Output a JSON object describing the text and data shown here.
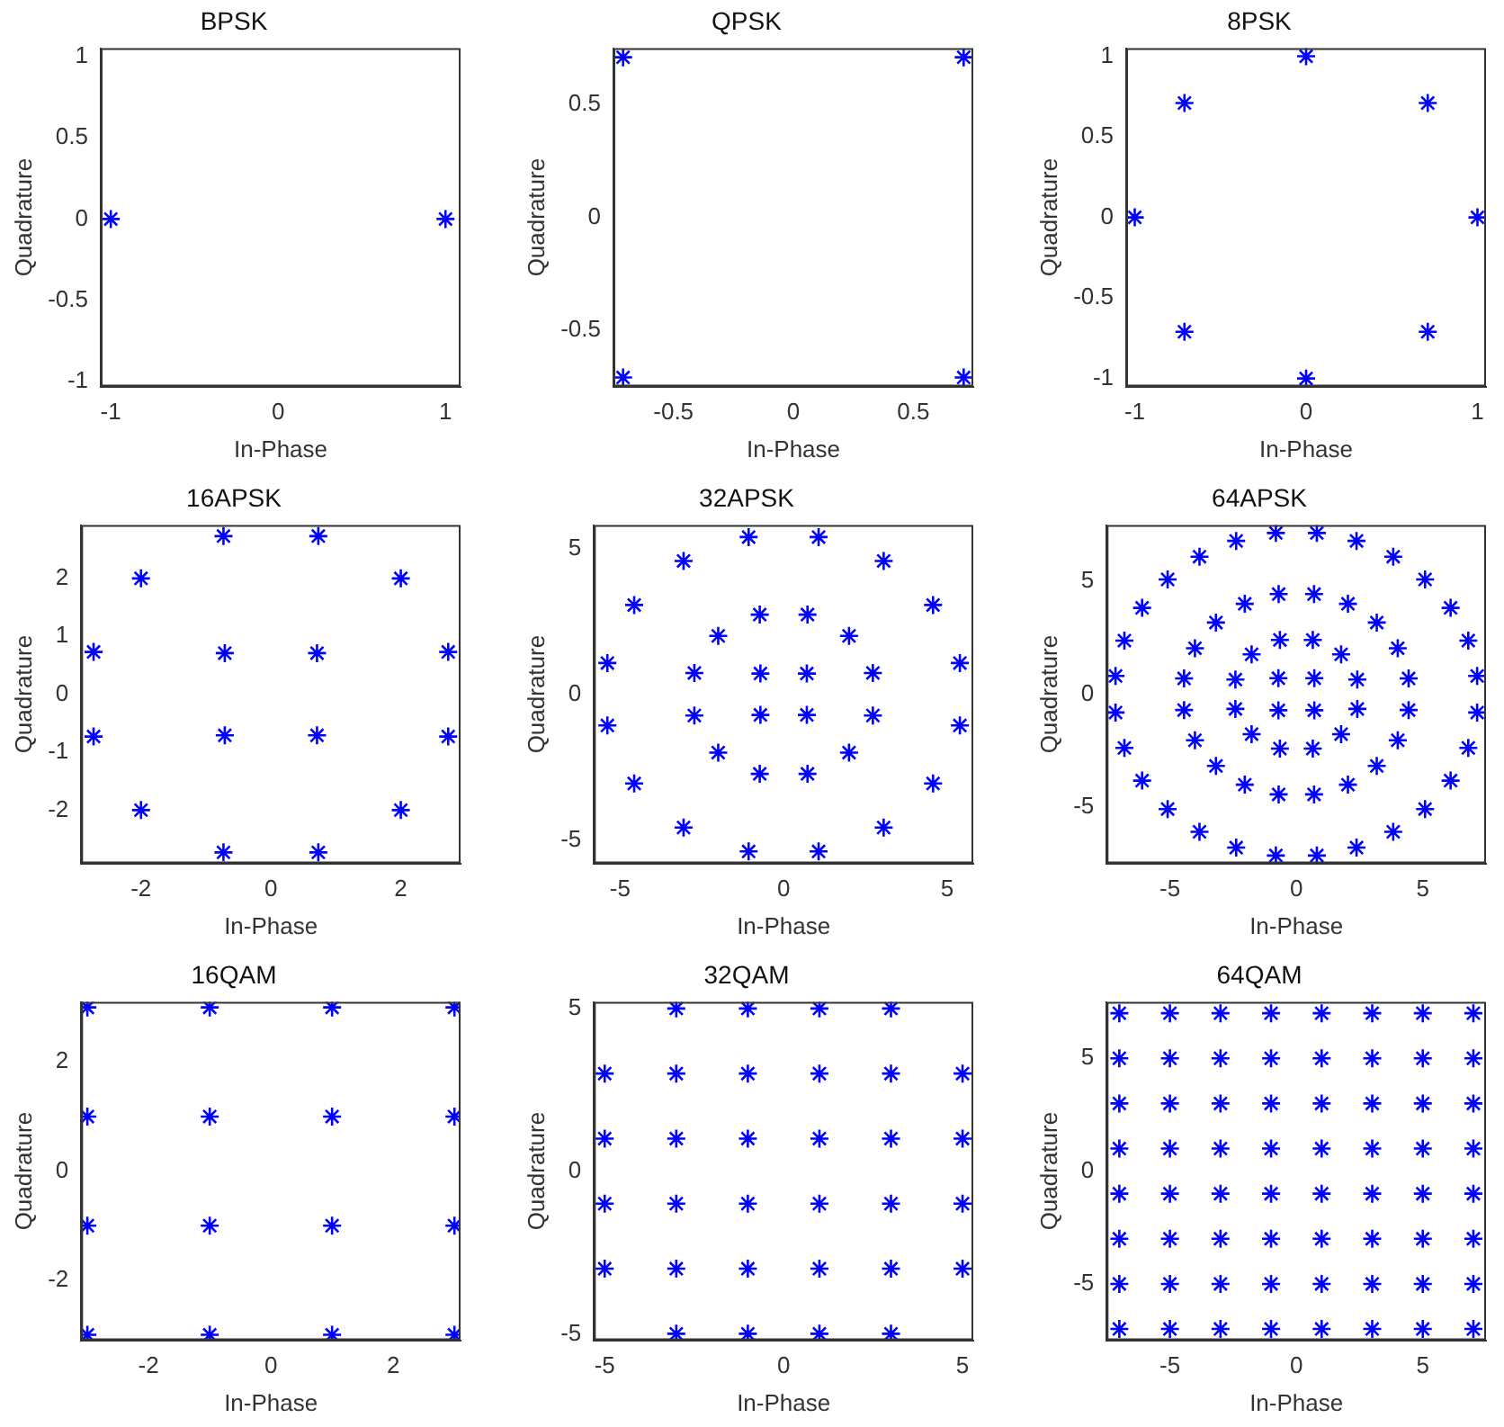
{
  "chart_data": [
    {
      "type": "scatter",
      "title": "BPSK",
      "xlabel": "In-Phase",
      "ylabel": "Quadrature",
      "color": "#0000ff",
      "marker": "cross",
      "x": [
        -1,
        1
      ],
      "values": [
        0,
        0
      ],
      "xlim": [
        -1.06,
        1.09
      ],
      "ylim": [
        -1.03,
        1.05
      ],
      "xticks": [
        -1,
        0,
        1
      ],
      "yticks": [
        -1,
        -0.5,
        0,
        0.5,
        1
      ]
    },
    {
      "type": "scatter",
      "title": "QPSK",
      "xlabel": "In-Phase",
      "ylabel": "Quadrature",
      "color": "#0000ff",
      "marker": "cross",
      "x": [
        0.71,
        -0.71,
        -0.71,
        0.71
      ],
      "values": [
        0.71,
        0.71,
        -0.71,
        -0.71
      ],
      "xlim": [
        -0.75,
        0.75
      ],
      "ylim": [
        -0.75,
        0.75
      ],
      "xticks": [
        -0.5,
        0,
        0.5
      ],
      "yticks": [
        -0.5,
        0,
        0.5
      ]
    },
    {
      "type": "scatter",
      "title": "8PSK",
      "xlabel": "In-Phase",
      "ylabel": "Quadrature",
      "color": "#0000ff",
      "marker": "cross",
      "x": [
        1,
        0.71,
        0,
        -0.71,
        -1,
        -0.71,
        0,
        0.71
      ],
      "values": [
        0,
        0.71,
        1,
        0.71,
        0,
        -0.71,
        -1,
        -0.71
      ],
      "xlim": [
        -1.05,
        1.05
      ],
      "ylim": [
        -1.05,
        1.05
      ],
      "xticks": [
        -1,
        0,
        1
      ],
      "yticks": [
        -1,
        -0.5,
        0,
        0.5,
        1
      ]
    },
    {
      "type": "scatter",
      "title": "16APSK",
      "xlabel": "In-Phase",
      "ylabel": "Quadrature",
      "color": "#0000ff",
      "marker": "cross",
      "x": [
        0.71,
        2.73,
        2,
        0.73,
        -0.71,
        -2.73,
        -2,
        -0.73,
        -0.71,
        -2.73,
        -2,
        -0.73,
        0.71,
        2.73,
        2,
        0.73
      ],
      "values": [
        0.71,
        0.73,
        2,
        2.73,
        0.71,
        0.73,
        2,
        2.73,
        -0.71,
        -0.73,
        -2,
        -2.73,
        -0.71,
        -0.73,
        -2,
        -2.73
      ],
      "xlim": [
        -2.92,
        2.92
      ],
      "ylim": [
        -2.92,
        2.92
      ],
      "xticks": [
        -2,
        0,
        2
      ],
      "yticks": [
        -2,
        -1,
        0,
        1,
        2
      ]
    },
    {
      "type": "scatter",
      "title": "32APSK",
      "xlabel": "In-Phase",
      "ylabel": "Quadrature",
      "color": "#0000ff",
      "marker": "cross",
      "x": [
        0.71,
        2.73,
        2,
        0.73,
        5.39,
        4.57,
        3.06,
        1.07,
        -0.71,
        -2.73,
        -2,
        -0.73,
        -5.39,
        -4.57,
        -3.06,
        -1.07,
        -0.71,
        -2.73,
        -2,
        -0.73,
        -5.39,
        -4.57,
        -3.06,
        -1.07,
        0.71,
        2.73,
        2,
        0.73,
        5.39,
        4.57,
        3.06,
        1.07
      ],
      "values": [
        0.71,
        0.73,
        2,
        2.73,
        1.07,
        3.06,
        4.57,
        5.39,
        0.71,
        0.73,
        2,
        2.73,
        1.07,
        3.06,
        4.57,
        5.39,
        -0.71,
        -0.73,
        -2,
        -2.73,
        -1.07,
        -3.06,
        -4.57,
        -5.39,
        -0.71,
        -0.73,
        -2,
        -2.73,
        -1.07,
        -3.06,
        -4.57,
        -5.39
      ],
      "xlim": [
        -5.8,
        5.8
      ],
      "ylim": [
        -5.8,
        5.8
      ],
      "xticks": [
        -5,
        0,
        5
      ],
      "yticks": [
        -5,
        0,
        5
      ]
    },
    {
      "type": "scatter",
      "title": "64APSK",
      "xlabel": "In-Phase",
      "ylabel": "Quadrature",
      "color": "#0000ff",
      "marker": "cross",
      "x": [
        0.71,
        2.41,
        1.77,
        0.65,
        4.44,
        4.01,
        3.18,
        2.04,
        0.7,
        7.15,
        6.8,
        6.1,
        5.09,
        3.83,
        2.38,
        0.81,
        -0.71,
        -2.41,
        -1.77,
        -0.65,
        -4.44,
        -4.01,
        -3.18,
        -2.04,
        -0.7,
        -7.15,
        -6.8,
        -6.1,
        -5.09,
        -3.83,
        -2.38,
        -0.81,
        -0.71,
        -2.41,
        -1.77,
        -0.65,
        -4.44,
        -4.01,
        -3.18,
        -2.04,
        -0.7,
        -7.15,
        -6.8,
        -6.1,
        -5.09,
        -3.83,
        -2.38,
        -0.81,
        0.71,
        2.41,
        1.77,
        0.65,
        4.44,
        4.01,
        3.18,
        2.04,
        0.7,
        7.15,
        6.8,
        6.1,
        5.09,
        3.83,
        2.38,
        0.81
      ],
      "values": [
        0.71,
        0.65,
        1.77,
        2.41,
        0.7,
        2.04,
        3.18,
        4.01,
        4.44,
        0.81,
        2.38,
        3.83,
        5.09,
        6.1,
        6.8,
        7.15,
        0.71,
        0.65,
        1.77,
        2.41,
        0.7,
        2.04,
        3.18,
        4.01,
        4.44,
        0.81,
        2.38,
        3.83,
        5.09,
        6.1,
        6.8,
        7.15,
        -0.71,
        -0.65,
        -1.77,
        -2.41,
        -0.7,
        -2.04,
        -3.18,
        -4.01,
        -4.44,
        -0.81,
        -2.38,
        -3.83,
        -5.09,
        -6.1,
        -6.8,
        -7.15,
        -0.71,
        -0.65,
        -1.77,
        -2.41,
        -0.7,
        -2.04,
        -3.18,
        -4.01,
        -4.44,
        -0.81,
        -2.38,
        -3.83,
        -5.09,
        -6.1,
        -6.8,
        -7.15
      ],
      "xlim": [
        -7.5,
        7.5
      ],
      "ylim": [
        -7.5,
        7.5
      ],
      "xticks": [
        -5,
        0,
        5
      ],
      "yticks": [
        -5,
        0,
        5
      ]
    },
    {
      "type": "scatter",
      "title": "16QAM",
      "xlabel": "In-Phase",
      "ylabel": "Quadrature",
      "color": "#0000ff",
      "marker": "cross",
      "x": [
        -3,
        -1,
        1,
        3,
        -3,
        -1,
        1,
        3,
        -3,
        -1,
        1,
        3,
        -3,
        -1,
        1,
        3
      ],
      "values": [
        3,
        3,
        3,
        3,
        1,
        1,
        1,
        1,
        -1,
        -1,
        -1,
        -1,
        -3,
        -3,
        -3,
        -3
      ],
      "xlim": [
        -3.1,
        3.1
      ],
      "ylim": [
        -3.1,
        3.1
      ],
      "xticks": [
        -2,
        0,
        2
      ],
      "yticks": [
        -2,
        0,
        2
      ]
    },
    {
      "type": "scatter",
      "title": "32QAM",
      "xlabel": "In-Phase",
      "ylabel": "Quadrature",
      "color": "#0000ff",
      "marker": "cross",
      "x": [
        -3,
        -1,
        1,
        3,
        -5,
        -3,
        -1,
        1,
        3,
        5,
        -5,
        -3,
        -1,
        1,
        3,
        5,
        -5,
        -3,
        -1,
        1,
        3,
        5,
        -5,
        -3,
        -1,
        1,
        3,
        5,
        -3,
        -1,
        1,
        3
      ],
      "values": [
        5,
        5,
        5,
        5,
        3,
        3,
        3,
        3,
        3,
        3,
        1,
        1,
        1,
        1,
        1,
        1,
        -1,
        -1,
        -1,
        -1,
        -1,
        -1,
        -3,
        -3,
        -3,
        -3,
        -3,
        -3,
        -5,
        -5,
        -5,
        -5
      ],
      "xlim": [
        -5.3,
        5.3
      ],
      "ylim": [
        -5.2,
        5.2
      ],
      "xticks": [
        -5,
        0,
        5
      ],
      "yticks": [
        -5,
        0,
        5
      ]
    },
    {
      "type": "scatter",
      "title": "64QAM",
      "xlabel": "In-Phase",
      "ylabel": "Quadrature",
      "color": "#0000ff",
      "marker": "cross",
      "x": [
        -7,
        -5,
        -3,
        -1,
        1,
        3,
        5,
        7,
        -7,
        -5,
        -3,
        -1,
        1,
        3,
        5,
        7,
        -7,
        -5,
        -3,
        -1,
        1,
        3,
        5,
        7,
        -7,
        -5,
        -3,
        -1,
        1,
        3,
        5,
        7,
        -7,
        -5,
        -3,
        -1,
        1,
        3,
        5,
        7,
        -7,
        -5,
        -3,
        -1,
        1,
        3,
        5,
        7,
        -7,
        -5,
        -3,
        -1,
        1,
        3,
        5,
        7,
        -7,
        -5,
        -3,
        -1,
        1,
        3,
        5,
        7
      ],
      "values": [
        7,
        7,
        7,
        7,
        7,
        7,
        7,
        7,
        5,
        5,
        5,
        5,
        5,
        5,
        5,
        5,
        3,
        3,
        3,
        3,
        3,
        3,
        3,
        3,
        1,
        1,
        1,
        1,
        1,
        1,
        1,
        1,
        -1,
        -1,
        -1,
        -1,
        -1,
        -1,
        -1,
        -1,
        -3,
        -3,
        -3,
        -3,
        -3,
        -3,
        -3,
        -3,
        -5,
        -5,
        -5,
        -5,
        -5,
        -5,
        -5,
        -5,
        -7,
        -7,
        -7,
        -7,
        -7,
        -7,
        -7,
        -7
      ],
      "xlim": [
        -7.5,
        7.5
      ],
      "ylim": [
        -7.5,
        7.5
      ],
      "xticks": [
        -5,
        0,
        5
      ],
      "yticks": [
        -5,
        0,
        5
      ]
    }
  ]
}
